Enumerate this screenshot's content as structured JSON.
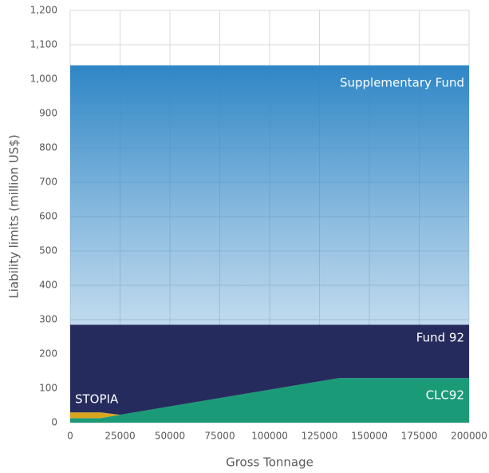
{
  "chart_data": {
    "type": "stacked-area",
    "x_label": "Gross Tonnage",
    "y_label": "Liability limits (million US$)",
    "x": [
      0,
      15000,
      25000,
      135000,
      200000
    ],
    "series": [
      {
        "name": "CLC92",
        "color": "#1b9a78",
        "values": [
          13,
          13,
          23,
          130,
          130
        ]
      },
      {
        "name": "STOPIA",
        "color": "#d9a520",
        "values": [
          17,
          17,
          0,
          0,
          0
        ]
      },
      {
        "name": "Fund 92",
        "color": "#262b5e",
        "values": [
          255,
          255,
          262,
          155,
          155
        ]
      },
      {
        "name": "Supplementary Fund",
        "color": "#2f86c6",
        "values": [
          755,
          755,
          755,
          755,
          755
        ]
      }
    ],
    "xlim": [
      0,
      200000
    ],
    "xticks": [
      0,
      25000,
      50000,
      75000,
      100000,
      125000,
      150000,
      175000,
      200000
    ],
    "ylim": [
      0,
      1200
    ],
    "yticks": [
      0,
      100,
      200,
      300,
      400,
      500,
      600,
      700,
      800,
      900,
      {
        "value": 1000,
        "label": "1,000"
      },
      {
        "value": 1100,
        "label": "1,100"
      },
      {
        "value": 1200,
        "label": "1,200"
      }
    ],
    "grid": true
  }
}
